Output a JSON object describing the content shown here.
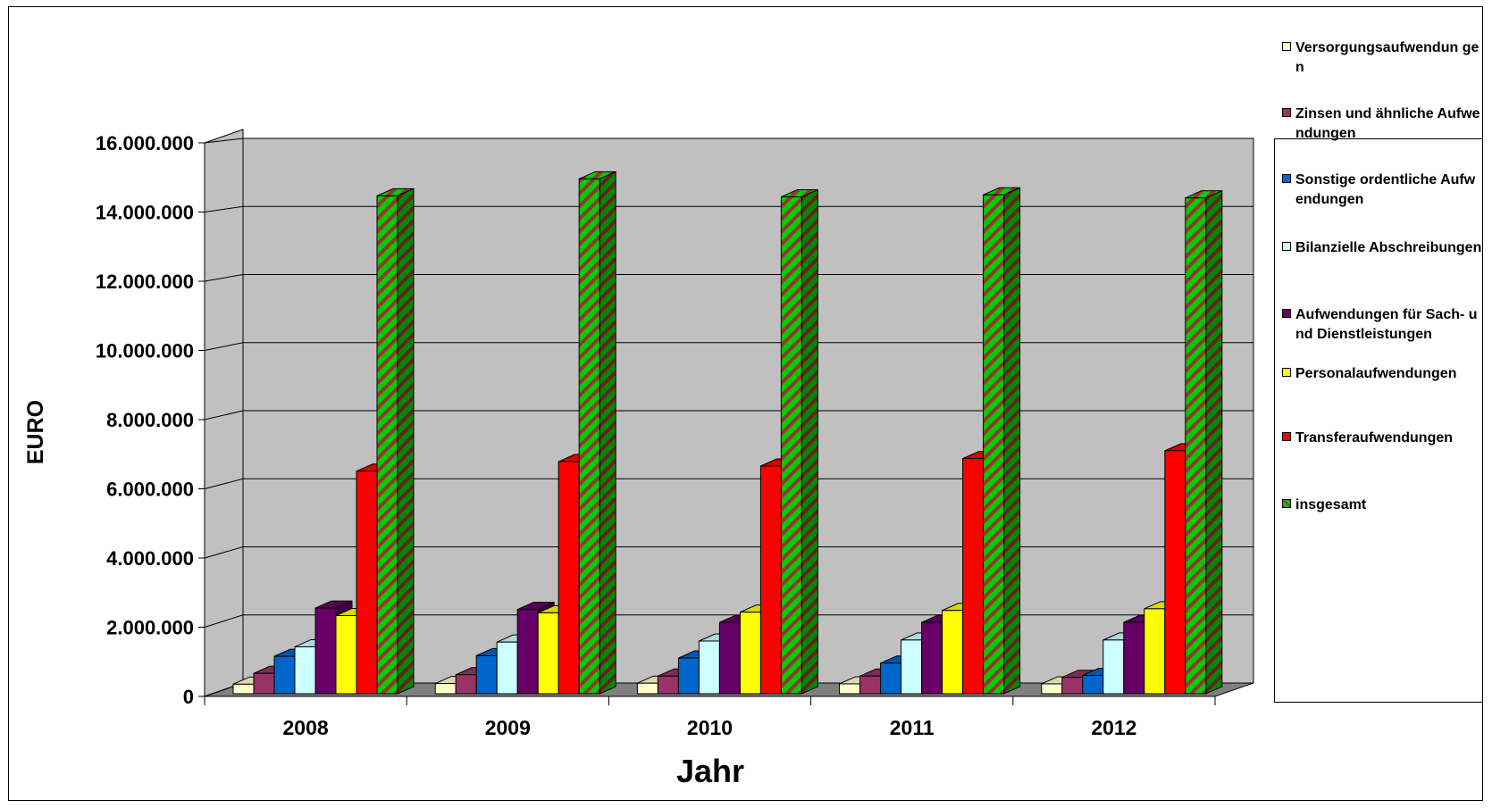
{
  "chart_data": {
    "type": "bar",
    "title": "",
    "xlabel": "Jahr",
    "ylabel": "EURO",
    "categories": [
      "2008",
      "2009",
      "2010",
      "2011",
      "2012"
    ],
    "ylim": [
      0,
      16000000
    ],
    "yticks": [
      0,
      2000000,
      4000000,
      6000000,
      8000000,
      10000000,
      12000000,
      14000000,
      16000000
    ],
    "ytick_labels": [
      "0",
      "2.000.000",
      "4.000.000",
      "6.000.000",
      "8.000.000",
      "10.000.000",
      "12.000.000",
      "14.000.000",
      "16.000.000"
    ],
    "grid": true,
    "three_d": true,
    "legend_position": "right",
    "series": [
      {
        "name": "Versorgungsaufwendungen",
        "color": "#FFFFCC",
        "values": [
          280000,
          300000,
          310000,
          290000,
          290000
        ]
      },
      {
        "name": "Zinsen und ähnliche Aufwendungen",
        "color": "#993366",
        "values": [
          600000,
          560000,
          520000,
          520000,
          480000
        ]
      },
      {
        "name": "Sonstige ordentliche Aufwendungen",
        "color": "#0066CC",
        "values": [
          1100000,
          1120000,
          1050000,
          900000,
          540000
        ]
      },
      {
        "name": "Bilanzielle Abschreibungen",
        "color": "#CCFFFF",
        "values": [
          1380000,
          1520000,
          1550000,
          1580000,
          1580000
        ]
      },
      {
        "name": "Aufwendungen für Sach- und Dienstleistungen",
        "color": "#660066",
        "values": [
          2520000,
          2480000,
          2100000,
          2100000,
          2100000
        ]
      },
      {
        "name": "Personalaufwendungen",
        "color": "#FFFF00",
        "values": [
          2300000,
          2380000,
          2400000,
          2450000,
          2500000
        ]
      },
      {
        "name": "Transferaufwendungen",
        "color": "#FF0000",
        "values": [
          6550000,
          6830000,
          6700000,
          6920000,
          7150000
        ]
      },
      {
        "name": "insgesamt",
        "color": "#00CC00",
        "pattern_color": "#993333",
        "values": [
          14650000,
          15150000,
          14620000,
          14680000,
          14590000
        ]
      }
    ],
    "legend_labels": [
      "Versorgungsaufwendun gen",
      "Zinsen und ähnliche Aufwendungen",
      "Sonstige ordentliche Aufwendungen",
      "Bilanzielle Abschreibungen",
      "Aufwendungen für Sach- und Dienstleistungen",
      "Personalaufwendungen",
      "Transferaufwendungen",
      "insgesamt"
    ],
    "colors": {
      "wall": "#C0C0C0",
      "floor": "#808080",
      "gridline": "#000000"
    }
  }
}
